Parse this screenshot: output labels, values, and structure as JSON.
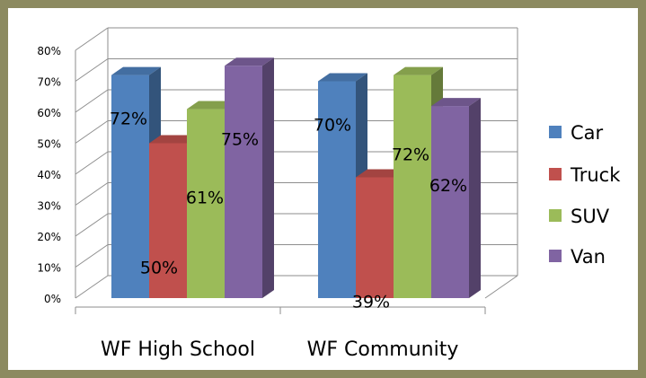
{
  "chart_data": {
    "type": "bar",
    "style": "3d-clustered-column",
    "categories": [
      "WF High School",
      "WF Community"
    ],
    "series": [
      {
        "name": "Car",
        "color": "#4f81bd",
        "values": [
          72,
          70
        ],
        "labels": [
          "72%",
          "70%"
        ]
      },
      {
        "name": "Truck",
        "color": "#c0504d",
        "values": [
          50,
          39
        ],
        "labels": [
          "50%",
          "39%"
        ]
      },
      {
        "name": "SUV",
        "color": "#9bbb59",
        "values": [
          61,
          72
        ],
        "labels": [
          "61%",
          "72%"
        ]
      },
      {
        "name": "Van",
        "color": "#8064a2",
        "values": [
          75,
          62
        ],
        "labels": [
          "75%",
          "62%"
        ]
      }
    ],
    "y_ticks": [
      "0%",
      "10%",
      "20%",
      "30%",
      "40%",
      "50%",
      "60%",
      "70%",
      "80%"
    ],
    "ylim": [
      0,
      80
    ],
    "grid": true,
    "legend": "right",
    "frame_color": "#8c8a60"
  }
}
